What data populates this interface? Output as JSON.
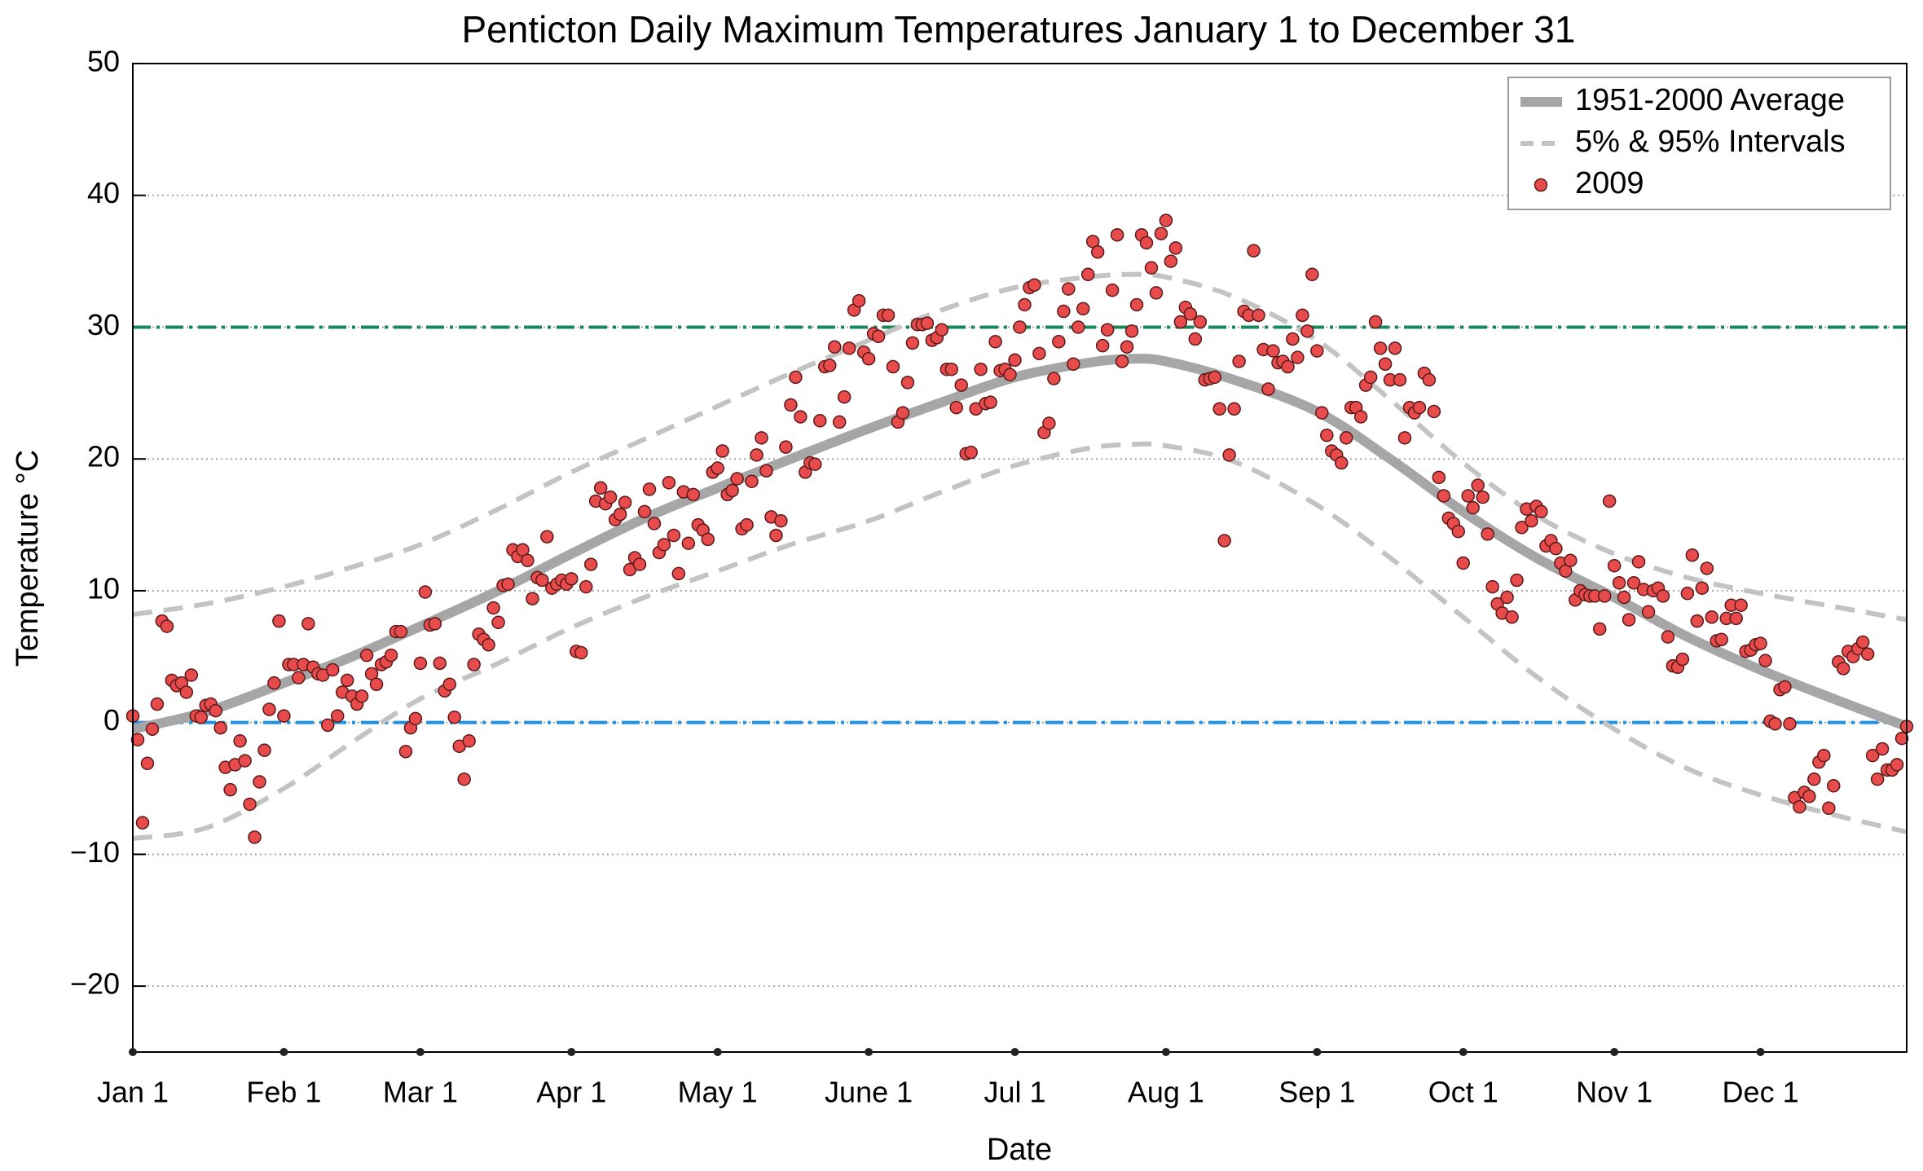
{
  "chart_data": {
    "type": "line",
    "title": "Penticton Daily Maximum Temperatures January 1 to December 31",
    "xlabel": "Date",
    "ylabel": "Temperature °C",
    "xlim": [
      0,
      364
    ],
    "ylim": [
      -25,
      50
    ],
    "xticks": [
      {
        "value": 0,
        "label": "Jan 1"
      },
      {
        "value": 31,
        "label": "Feb 1"
      },
      {
        "value": 59,
        "label": "Mar 1"
      },
      {
        "value": 90,
        "label": "Apr 1"
      },
      {
        "value": 120,
        "label": "May 1"
      },
      {
        "value": 151,
        "label": "June 1"
      },
      {
        "value": 181,
        "label": "Jul 1"
      },
      {
        "value": 212,
        "label": "Aug 1"
      },
      {
        "value": 243,
        "label": "Sep 1"
      },
      {
        "value": 273,
        "label": "Oct 1"
      },
      {
        "value": 304,
        "label": "Nov 1"
      },
      {
        "value": 334,
        "label": "Dec 1"
      }
    ],
    "yticks": [
      {
        "value": -20,
        "label": "−20"
      },
      {
        "value": -10,
        "label": "−10"
      },
      0,
      10,
      20,
      30,
      40,
      50
    ],
    "grid": true,
    "legend": "upper right",
    "reference_lines": [
      {
        "value": 30,
        "color": "#158a58"
      },
      {
        "value": 0,
        "color": "#1e90e6"
      }
    ],
    "series": [
      {
        "name": "1951-2000 Average",
        "color": "#a6a6a6",
        "style": "solid",
        "x": [
          0,
          15,
          31,
          45,
          59,
          75,
          90,
          105,
          120,
          135,
          151,
          166,
          181,
          196,
          205,
          212,
          226,
          243,
          258,
          273,
          288,
          304,
          319,
          334,
          349,
          364
        ],
        "values": [
          -0.5,
          0.8,
          3,
          5,
          7.3,
          10,
          12.8,
          15.5,
          17.8,
          20,
          22.3,
          24.3,
          26.2,
          27.3,
          27.6,
          27.4,
          26,
          23.6,
          20,
          16,
          12.5,
          9.5,
          6.5,
          4,
          1.8,
          -0.3
        ]
      },
      {
        "name": "5% & 95% Intervals",
        "color": "#c3c3c3",
        "style": "dashed",
        "x": [
          0,
          15,
          31,
          45,
          59,
          75,
          90,
          105,
          120,
          135,
          151,
          166,
          181,
          196,
          205,
          212,
          226,
          243,
          258,
          273,
          288,
          304,
          319,
          334,
          349,
          364
        ],
        "values": [
          8.2,
          9,
          10.3,
          11.8,
          13.5,
          16.2,
          19,
          21.5,
          24,
          26.5,
          29,
          31.3,
          33,
          33.8,
          34,
          33.8,
          32.3,
          29,
          24.5,
          19.7,
          15.7,
          12.8,
          11,
          9.8,
          8.8,
          7.8
        ],
        "lower": [
          -8.8,
          -8,
          -5,
          -1.5,
          1.8,
          4.5,
          7.2,
          9.5,
          11.5,
          13.5,
          15.3,
          17.5,
          19.5,
          20.8,
          21.1,
          21,
          19.8,
          16.5,
          12.5,
          8,
          3.5,
          -0.5,
          -3.5,
          -5.5,
          -7,
          -8.3
        ]
      },
      {
        "name": "2009",
        "color": "#e84b4b",
        "style": "scatter",
        "x": [
          0,
          1,
          2,
          3,
          4,
          5,
          6,
          7,
          8,
          9,
          10,
          11,
          12,
          13,
          14,
          15,
          16,
          17,
          18,
          19,
          20,
          21,
          22,
          23,
          24,
          25,
          26,
          27,
          28,
          29,
          30,
          31,
          32,
          33,
          34,
          35,
          36,
          37,
          38,
          39,
          40,
          41,
          42,
          43,
          44,
          45,
          46,
          47,
          48,
          49,
          50,
          51,
          52,
          53,
          54,
          55,
          56,
          57,
          58,
          59,
          60,
          61,
          62,
          63,
          64,
          65,
          66,
          67,
          68,
          69,
          70,
          71,
          72,
          73,
          74,
          75,
          76,
          77,
          78,
          79,
          80,
          81,
          82,
          83,
          84,
          85,
          86,
          87,
          88,
          89,
          90,
          91,
          92,
          93,
          94,
          95,
          96,
          97,
          98,
          99,
          100,
          101,
          102,
          103,
          104,
          105,
          106,
          107,
          108,
          109,
          110,
          111,
          112,
          113,
          114,
          115,
          116,
          117,
          118,
          119,
          120,
          121,
          122,
          123,
          124,
          125,
          126,
          127,
          128,
          129,
          130,
          131,
          132,
          133,
          134,
          135,
          136,
          137,
          138,
          139,
          140,
          141,
          142,
          143,
          144,
          145,
          146,
          147,
          148,
          149,
          150,
          151,
          152,
          153,
          154,
          155,
          156,
          157,
          158,
          159,
          160,
          161,
          162,
          163,
          164,
          165,
          166,
          167,
          168,
          169,
          170,
          171,
          172,
          173,
          174,
          175,
          176,
          177,
          178,
          179,
          180,
          181,
          182,
          183,
          184,
          185,
          186,
          187,
          188,
          189,
          190,
          191,
          192,
          193,
          194,
          195,
          196,
          197,
          198,
          199,
          200,
          201,
          202,
          203,
          204,
          205,
          206,
          207,
          208,
          209,
          210,
          211,
          212,
          213,
          214,
          215,
          216,
          217,
          218,
          219,
          220,
          221,
          222,
          223,
          224,
          225,
          226,
          227,
          228,
          229,
          230,
          231,
          232,
          233,
          234,
          235,
          236,
          237,
          238,
          239,
          240,
          241,
          242,
          243,
          244,
          245,
          246,
          247,
          248,
          249,
          250,
          251,
          252,
          253,
          254,
          255,
          256,
          257,
          258,
          259,
          260,
          261,
          262,
          263,
          264,
          265,
          266,
          267,
          268,
          269,
          270,
          271,
          272,
          273,
          274,
          275,
          276,
          277,
          278,
          279,
          280,
          281,
          282,
          283,
          284,
          285,
          286,
          287,
          288,
          289,
          290,
          291,
          292,
          293,
          294,
          295,
          296,
          297,
          298,
          299,
          300,
          301,
          302,
          303,
          304,
          305,
          306,
          307,
          308,
          309,
          310,
          311,
          312,
          313,
          314,
          315,
          316,
          317,
          318,
          319,
          320,
          321,
          322,
          323,
          324,
          325,
          326,
          327,
          328,
          329,
          330,
          331,
          332,
          333,
          334,
          335,
          336,
          337,
          338,
          339,
          340,
          341,
          342,
          343,
          344,
          345,
          346,
          347,
          348,
          349,
          350,
          351,
          352,
          353,
          354,
          355,
          356,
          357,
          358,
          359,
          360,
          361,
          362,
          363,
          364
        ],
        "values": [
          0.5,
          -1.3,
          -7.6,
          -3.1,
          -0.5,
          1.4,
          7.7,
          7.3,
          3.2,
          2.8,
          3,
          2.3,
          3.6,
          0.5,
          0.4,
          1.3,
          1.4,
          0.9,
          -0.4,
          -3.4,
          -5.1,
          -3.2,
          -1.4,
          -2.9,
          -6.2,
          -8.7,
          -4.5,
          -2.1,
          1,
          3,
          7.7,
          0.5,
          4.4,
          4.4,
          3.4,
          4.4,
          7.5,
          4.2,
          3.7,
          3.6,
          -0.2,
          4,
          0.5,
          2.3,
          3.2,
          2,
          1.4,
          2,
          5.1,
          3.7,
          2.9,
          4.4,
          4.6,
          5.1,
          6.9,
          6.9,
          -2.2,
          -0.4,
          0.3,
          4.5,
          9.9,
          7.4,
          7.5,
          4.5,
          2.4,
          2.9,
          0.4,
          -1.8,
          -4.3,
          -1.4,
          4.4,
          6.7,
          6.3,
          5.9,
          8.7,
          7.6,
          10.4,
          10.5,
          13.1,
          12.6,
          13.1,
          12.3,
          9.4,
          11,
          10.8,
          14.1,
          10.2,
          10.5,
          10.8,
          10.5,
          10.9,
          5.4,
          5.3,
          10.3,
          12,
          16.8,
          17.8,
          16.6,
          17.1,
          15.4,
          15.8,
          16.7,
          11.6,
          12.5,
          12,
          16,
          17.7,
          15.1,
          12.9,
          13.5,
          18.2,
          14.2,
          11.3,
          17.5,
          13.6,
          17.3,
          15,
          14.6,
          13.9,
          19,
          19.3,
          20.6,
          17.3,
          17.6,
          18.5,
          14.7,
          15,
          18.3,
          20.3,
          21.6,
          19.1,
          15.6,
          14.2,
          15.3,
          20.9,
          24.1,
          26.2,
          23.2,
          19,
          19.7,
          19.6,
          22.9,
          27,
          27.1,
          28.5,
          22.8,
          24.7,
          28.4,
          31.3,
          32,
          28.1,
          27.6,
          29.5,
          29.3,
          30.9,
          30.9,
          27,
          22.8,
          23.5,
          25.8,
          28.8,
          30.2,
          30.2,
          30.3,
          29,
          29.2,
          29.8,
          26.8,
          26.8,
          23.9,
          25.6,
          20.4,
          20.5,
          23.8,
          26.8,
          24.2,
          24.3,
          28.9,
          26.7,
          26.8,
          26.4,
          27.5,
          30,
          31.7,
          33,
          33.2,
          28,
          22,
          22.7,
          26.1,
          28.9,
          31.2,
          32.9,
          27.2,
          30,
          31.4,
          34,
          36.5,
          35.7,
          28.6,
          29.8,
          32.8,
          37,
          27.4,
          28.5,
          29.7,
          31.7,
          37,
          36.4,
          34.5,
          32.6,
          37.1,
          38.1,
          35,
          36,
          30.4,
          31.5,
          31,
          29.1,
          30.4,
          26,
          26.1,
          26.2,
          23.8,
          13.8,
          20.3,
          23.8,
          27.4,
          31.2,
          30.9,
          35.8,
          30.9,
          28.3,
          25.3,
          28.2,
          27.3,
          27.4,
          27,
          29.1,
          27.7,
          30.9,
          29.7,
          34,
          28.2,
          23.5,
          21.8,
          20.6,
          20.3,
          19.7,
          21.6,
          23.9,
          23.9,
          23.2,
          25.6,
          26.2,
          30.4,
          28.4,
          27.2,
          26,
          28.4,
          26,
          21.6,
          23.9,
          23.5,
          23.9,
          26.5,
          26,
          23.6,
          18.6,
          17.2,
          15.5,
          15.1,
          14.5,
          12.1,
          17.2,
          16.3,
          18,
          17.1,
          14.3,
          10.3,
          9,
          8.3,
          9.5,
          8,
          10.8,
          14.8,
          16.2,
          15.3,
          16.4,
          16,
          13.4,
          13.8,
          13.2,
          12.1,
          11.5,
          12.3,
          9.3,
          10,
          9.7,
          9.6,
          9.6,
          7.1,
          9.6,
          16.8,
          11.9,
          10.6,
          9.5,
          7.8,
          10.6,
          12.2,
          10.1,
          8.4,
          10,
          10.2,
          9.6,
          6.5,
          4.3,
          4.2,
          4.8,
          9.8,
          12.7,
          7.7,
          10.2,
          11.7,
          8,
          6.2,
          6.3,
          7.9,
          8.9,
          7.9,
          8.9,
          5.4,
          5.5,
          5.9,
          6,
          4.7,
          0.1,
          -0.1,
          2.5,
          2.7,
          -0.1,
          -5.7,
          -6.4,
          -5.3,
          -5.6,
          -4.3,
          -3,
          -2.5,
          -6.5,
          -4.8,
          4.6,
          4.1,
          5.4,
          5,
          5.6,
          6.1,
          5.2,
          -2.5,
          -4.3,
          -2,
          -3.6,
          -3.6,
          -3.2,
          -1.2,
          -0.3
        ]
      }
    ]
  }
}
